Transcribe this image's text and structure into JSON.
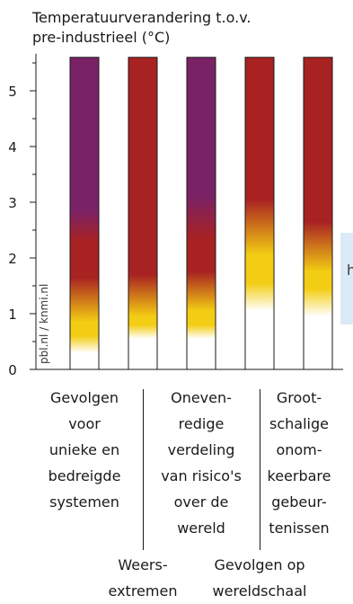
{
  "chart_data": {
    "type": "bar",
    "title": [
      "Temperatuurverandering t.o.v.",
      "pre-industrieel (°C)"
    ],
    "ylim": [
      0,
      5.6
    ],
    "yticks": [
      "0",
      "1",
      "2",
      "3",
      "4",
      "5"
    ],
    "source": "pbl.nl / knmi.nl",
    "colors": {
      "white": "#ffffff",
      "yellow": "#f3cd13",
      "red": "#a82222",
      "purple": "#7a2266",
      "axis": "#1a1a1a"
    },
    "categories": [
      {
        "lines": [
          "Gevolgen",
          "voor",
          "unieke en",
          "bedreigde",
          "systemen"
        ],
        "top": 5.6,
        "stops": [
          {
            "t": 0.3,
            "c": "white"
          },
          {
            "t": 0.6,
            "c": "yellow"
          },
          {
            "t": 0.85,
            "c": "yellow"
          },
          {
            "t": 1.65,
            "c": "red"
          },
          {
            "t": 2.3,
            "c": "red"
          },
          {
            "t": 2.85,
            "c": "purple"
          },
          {
            "t": 5.6,
            "c": "purple"
          }
        ]
      },
      {
        "lines": [
          "Weers-",
          "extremen"
        ],
        "top": 5.6,
        "stops": [
          {
            "t": 0.55,
            "c": "white"
          },
          {
            "t": 0.8,
            "c": "yellow"
          },
          {
            "t": 0.95,
            "c": "yellow"
          },
          {
            "t": 1.7,
            "c": "red"
          },
          {
            "t": 5.6,
            "c": "red"
          }
        ]
      },
      {
        "lines": [
          "Oneven-",
          "redige",
          "verdeling",
          "van risico's",
          "over de",
          "wereld"
        ],
        "top": 5.6,
        "stops": [
          {
            "t": 0.55,
            "c": "white"
          },
          {
            "t": 0.8,
            "c": "yellow"
          },
          {
            "t": 1.05,
            "c": "yellow"
          },
          {
            "t": 1.75,
            "c": "red"
          },
          {
            "t": 2.35,
            "c": "red"
          },
          {
            "t": 3.1,
            "c": "purple"
          },
          {
            "t": 5.6,
            "c": "purple"
          }
        ]
      },
      {
        "lines": [
          "Gevolgen op",
          "wereldschaal"
        ],
        "top": 5.6,
        "stops": [
          {
            "t": 1.05,
            "c": "white"
          },
          {
            "t": 1.55,
            "c": "yellow"
          },
          {
            "t": 2.05,
            "c": "yellow"
          },
          {
            "t": 3.05,
            "c": "red"
          },
          {
            "t": 5.6,
            "c": "red"
          }
        ]
      },
      {
        "lines": [
          "Groot-",
          "schalige",
          "onom-",
          "keerbare",
          "gebeur-",
          "tenissen"
        ],
        "top": 5.6,
        "stops": [
          {
            "t": 0.95,
            "c": "white"
          },
          {
            "t": 1.45,
            "c": "yellow"
          },
          {
            "t": 1.75,
            "c": "yellow"
          },
          {
            "t": 2.65,
            "c": "red"
          },
          {
            "t": 5.6,
            "c": "red"
          }
        ]
      }
    ]
  },
  "overlay": {
    "text": "h"
  }
}
